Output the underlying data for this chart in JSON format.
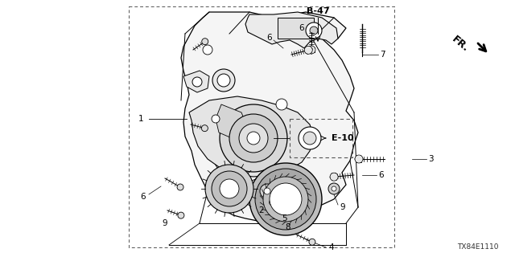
{
  "background_color": "#ffffff",
  "diagram_code": "TX84E1110",
  "b_label": "B-47",
  "fr_label": "FR.",
  "e10_label": "E-10",
  "line_color": "#000000",
  "text_color": "#000000",
  "label_fontsize": 7.5,
  "figsize": [
    6.4,
    3.2
  ],
  "dpi": 100
}
